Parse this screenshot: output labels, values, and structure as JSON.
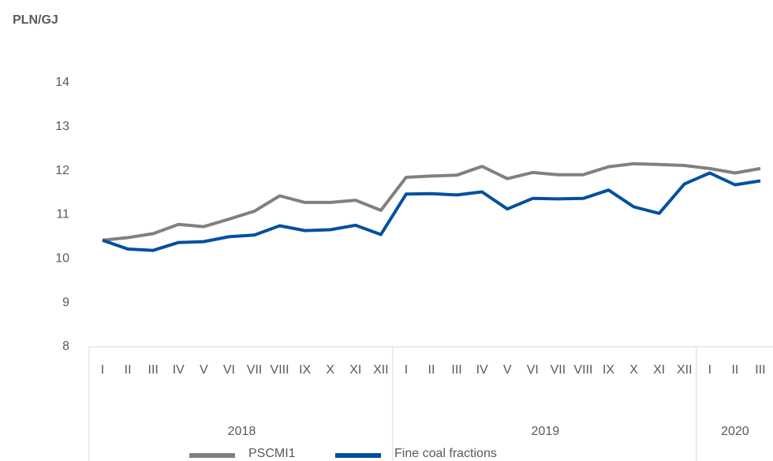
{
  "chart_data": {
    "type": "line",
    "y_label": "PLN/GJ",
    "groups": [
      {
        "name": "2018",
        "categories": [
          "I",
          "II",
          "III",
          "IV",
          "V",
          "VI",
          "VII",
          "VIII",
          "IX",
          "X",
          "XI",
          "XII"
        ]
      },
      {
        "name": "2019",
        "categories": [
          "I",
          "II",
          "III",
          "IV",
          "V",
          "VI",
          "VII",
          "VIII",
          "IX",
          "X",
          "XI",
          "XII"
        ]
      },
      {
        "name": "2020",
        "categories": [
          "I",
          "II",
          "III"
        ]
      }
    ],
    "series": [
      {
        "name": "PSCMI1",
        "color": "#808080",
        "values": [
          10.42,
          10.48,
          10.57,
          10.78,
          10.73,
          10.9,
          11.08,
          11.43,
          11.28,
          11.28,
          11.33,
          11.1,
          11.85,
          11.88,
          11.9,
          12.1,
          11.82,
          11.96,
          11.91,
          11.91,
          12.09,
          12.16,
          12.14,
          12.12,
          12.05,
          11.95,
          12.05
        ]
      },
      {
        "name": "Fine coal fractions",
        "color": "#0050a0",
        "values": [
          10.42,
          10.22,
          10.19,
          10.37,
          10.39,
          10.5,
          10.54,
          10.75,
          10.64,
          10.66,
          10.76,
          10.55,
          11.47,
          11.48,
          11.45,
          11.52,
          11.13,
          11.37,
          11.36,
          11.37,
          11.56,
          11.18,
          11.03,
          11.7,
          11.95,
          11.68,
          11.77
        ]
      }
    ],
    "ylim": [
      8,
      14
    ],
    "yticks": [
      8,
      9,
      10,
      11,
      12,
      13,
      14
    ],
    "grid": false,
    "legend": "bottom"
  }
}
